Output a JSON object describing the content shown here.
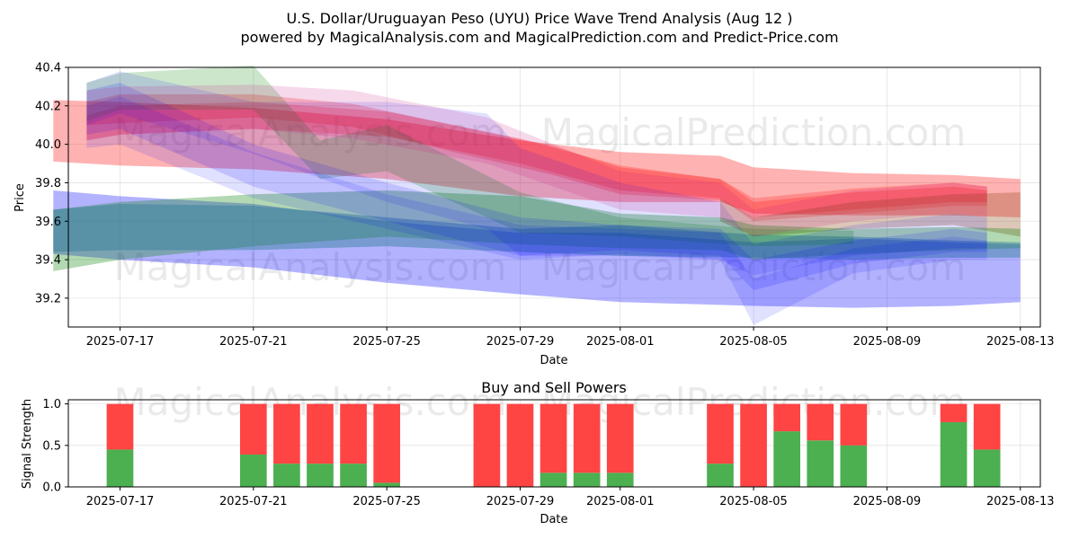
{
  "title_line1": "U.S. Dollar/Uruguayan Peso (UYU) Price Wave Trend Analysis (Aug 12 )",
  "title_line2": "powered by MagicalAnalysis.com and MagicalPrediction.com and Predict-Price.com",
  "watermarks": [
    "MagicalAnalysis.com",
    "MagicalPrediction.com"
  ],
  "chart_data": [
    {
      "type": "area",
      "title": "",
      "xlabel": "Date",
      "ylabel": "Price",
      "ylim": [
        39.05,
        40.4
      ],
      "yticks": [
        39.2,
        39.4,
        39.6,
        39.8,
        40.0,
        40.2,
        40.4
      ],
      "xdomain": [
        "2025-07-15",
        "2025-08-13"
      ],
      "xticks": [
        "2025-07-17",
        "2025-07-21",
        "2025-07-25",
        "2025-07-29",
        "2025-08-01",
        "2025-08-05",
        "2025-08-09",
        "2025-08-13"
      ],
      "grid": true,
      "series": [
        {
          "name": "red band 1",
          "color": "#ff0000",
          "opacity": 0.3,
          "x": [
            "2025-07-15",
            "2025-07-17",
            "2025-07-21",
            "2025-07-25",
            "2025-07-29",
            "2025-08-01",
            "2025-08-04",
            "2025-08-05",
            "2025-08-08",
            "2025-08-11",
            "2025-08-13"
          ],
          "upper": [
            40.23,
            40.22,
            40.19,
            40.13,
            40.02,
            39.96,
            39.94,
            39.88,
            39.85,
            39.84,
            39.82
          ],
          "lower": [
            39.91,
            39.89,
            39.87,
            39.82,
            39.73,
            39.7,
            39.7,
            39.64,
            39.63,
            39.63,
            39.62
          ]
        },
        {
          "name": "red band 2",
          "color": "#ff0000",
          "opacity": 0.22,
          "x": [
            "2025-07-16",
            "2025-07-17",
            "2025-07-21",
            "2025-07-24",
            "2025-07-27",
            "2025-07-30",
            "2025-08-01",
            "2025-08-04",
            "2025-08-05",
            "2025-08-08",
            "2025-08-11",
            "2025-08-12"
          ],
          "upper": [
            40.22,
            40.26,
            40.26,
            40.21,
            40.1,
            39.99,
            39.88,
            39.82,
            39.72,
            39.77,
            39.8,
            39.78
          ],
          "lower": [
            40.1,
            40.11,
            40.14,
            40.09,
            39.96,
            39.84,
            39.74,
            39.71,
            39.62,
            39.66,
            39.7,
            39.7
          ]
        },
        {
          "name": "red band 3",
          "color": "#ff0000",
          "opacity": 0.22,
          "x": [
            "2025-07-16",
            "2025-07-17",
            "2025-07-21",
            "2025-07-25",
            "2025-07-29",
            "2025-08-01",
            "2025-08-04",
            "2025-08-05",
            "2025-08-08",
            "2025-08-11",
            "2025-08-12"
          ],
          "upper": [
            40.15,
            40.2,
            40.22,
            40.17,
            40.03,
            39.89,
            39.82,
            39.7,
            39.75,
            39.78,
            39.76
          ],
          "lower": [
            40.02,
            40.05,
            40.08,
            40.04,
            39.9,
            39.76,
            39.72,
            39.6,
            39.64,
            39.68,
            39.68
          ]
        },
        {
          "name": "brown band",
          "color": "#8b4513",
          "opacity": 0.3,
          "x": [
            "2025-08-04",
            "2025-08-05",
            "2025-08-08",
            "2025-08-11",
            "2025-08-13"
          ],
          "upper": [
            39.72,
            39.62,
            39.7,
            39.74,
            39.75
          ],
          "lower": [
            39.6,
            39.52,
            39.56,
            39.58,
            39.52
          ]
        },
        {
          "name": "blue band wide",
          "color": "#0000ff",
          "opacity": 0.3,
          "x": [
            "2025-07-15",
            "2025-07-17",
            "2025-07-21",
            "2025-07-25",
            "2025-07-29",
            "2025-08-01",
            "2025-08-05",
            "2025-08-08",
            "2025-08-11",
            "2025-08-13"
          ],
          "upper": [
            39.76,
            39.73,
            39.69,
            39.6,
            39.54,
            39.54,
            39.49,
            39.51,
            39.49,
            39.48
          ],
          "lower": [
            39.43,
            39.4,
            39.36,
            39.28,
            39.22,
            39.18,
            39.16,
            39.15,
            39.16,
            39.18
          ]
        },
        {
          "name": "green band wide",
          "color": "#008000",
          "opacity": 0.3,
          "x": [
            "2025-07-15",
            "2025-07-17",
            "2025-07-21",
            "2025-07-25",
            "2025-07-29",
            "2025-08-01",
            "2025-08-04",
            "2025-08-05",
            "2025-08-08",
            "2025-08-11",
            "2025-08-13"
          ],
          "upper": [
            39.66,
            39.7,
            39.74,
            39.76,
            39.73,
            39.64,
            39.62,
            39.58,
            39.56,
            39.57,
            39.56
          ],
          "lower": [
            39.34,
            39.4,
            39.47,
            39.52,
            39.48,
            39.46,
            39.45,
            39.4,
            39.43,
            39.45,
            39.46
          ]
        },
        {
          "name": "steel band",
          "color": "#2e7d99",
          "opacity": 0.45,
          "x": [
            "2025-07-15",
            "2025-07-17",
            "2025-07-21",
            "2025-07-25",
            "2025-07-29",
            "2025-08-01",
            "2025-08-05",
            "2025-08-08",
            "2025-08-11",
            "2025-08-13"
          ],
          "upper": [
            39.66,
            39.69,
            39.68,
            39.62,
            39.56,
            39.58,
            39.53,
            39.52,
            39.5,
            39.49
          ],
          "lower": [
            39.44,
            39.45,
            39.45,
            39.47,
            39.44,
            39.42,
            39.41,
            39.4,
            39.41,
            39.41
          ]
        },
        {
          "name": "green band upper",
          "color": "#008000",
          "opacity": 0.2,
          "x": [
            "2025-07-16",
            "2025-07-17",
            "2025-07-21",
            "2025-07-23",
            "2025-07-25",
            "2025-07-29",
            "2025-08-01",
            "2025-08-05",
            "2025-08-08"
          ],
          "upper": [
            40.32,
            40.37,
            40.41,
            40.02,
            40.1,
            39.75,
            39.62,
            39.56,
            39.55
          ],
          "lower": [
            40.12,
            40.18,
            40.18,
            39.82,
            39.86,
            39.54,
            39.52,
            39.47,
            39.48
          ]
        },
        {
          "name": "blue band falling 1",
          "color": "#0000ff",
          "opacity": 0.12,
          "x": [
            "2025-07-16",
            "2025-07-17",
            "2025-07-21",
            "2025-07-25",
            "2025-07-28",
            "2025-07-29",
            "2025-08-01",
            "2025-08-04",
            "2025-08-05",
            "2025-08-08",
            "2025-08-11",
            "2025-08-12"
          ],
          "upper": [
            40.32,
            40.38,
            40.22,
            40.22,
            40.16,
            39.98,
            39.8,
            39.7,
            39.48,
            39.58,
            39.64,
            39.62
          ],
          "lower": [
            40.1,
            40.16,
            39.95,
            39.7,
            39.56,
            39.42,
            39.42,
            39.4,
            39.32,
            39.42,
            39.46,
            39.46
          ]
        },
        {
          "name": "blue band falling 2",
          "color": "#0000ff",
          "opacity": 0.14,
          "x": [
            "2025-07-16",
            "2025-07-17",
            "2025-07-21",
            "2025-07-25",
            "2025-07-29",
            "2025-08-01",
            "2025-08-04",
            "2025-08-05",
            "2025-08-08",
            "2025-08-11",
            "2025-08-12"
          ],
          "upper": [
            40.28,
            40.32,
            40.0,
            39.8,
            39.62,
            39.58,
            39.56,
            39.4,
            39.5,
            39.56,
            39.54
          ],
          "lower": [
            40.05,
            40.08,
            39.78,
            39.6,
            39.42,
            39.45,
            39.42,
            39.24,
            39.38,
            39.44,
            39.44
          ]
        },
        {
          "name": "blue band falling 3",
          "color": "#0000ff",
          "opacity": 0.12,
          "x": [
            "2025-07-16",
            "2025-07-17",
            "2025-07-21",
            "2025-07-25",
            "2025-07-29",
            "2025-08-01",
            "2025-08-04",
            "2025-08-05",
            "2025-08-08",
            "2025-08-11",
            "2025-08-12"
          ],
          "upper": [
            40.2,
            40.25,
            39.96,
            39.74,
            39.58,
            39.56,
            39.54,
            39.3,
            39.46,
            39.52,
            39.5
          ],
          "lower": [
            39.98,
            40.0,
            39.72,
            39.56,
            39.4,
            39.43,
            39.4,
            39.06,
            39.33,
            39.4,
            39.4
          ]
        },
        {
          "name": "purple band",
          "color": "#c71585",
          "opacity": 0.16,
          "x": [
            "2025-07-16",
            "2025-07-17",
            "2025-07-21",
            "2025-07-24",
            "2025-07-28",
            "2025-08-01",
            "2025-08-04",
            "2025-08-05",
            "2025-08-08",
            "2025-08-11",
            "2025-08-12"
          ],
          "upper": [
            40.28,
            40.3,
            40.31,
            40.28,
            40.14,
            39.86,
            39.8,
            39.66,
            39.76,
            39.8,
            39.78
          ],
          "lower": [
            40.02,
            40.05,
            40.08,
            40.03,
            39.9,
            39.66,
            39.62,
            39.52,
            39.6,
            39.64,
            39.62
          ]
        }
      ]
    },
    {
      "type": "bar",
      "title": "Buy and Sell Powers",
      "xlabel": "Date",
      "ylabel": "Signal Strength",
      "ylim": [
        0,
        1.05
      ],
      "yticks": [
        0.0,
        0.5,
        1.0
      ],
      "xdomain": [
        "2025-07-15",
        "2025-08-13"
      ],
      "xticks": [
        "2025-07-17",
        "2025-07-21",
        "2025-07-25",
        "2025-07-29",
        "2025-08-01",
        "2025-08-05",
        "2025-08-09",
        "2025-08-13"
      ],
      "grid": true,
      "colors": {
        "buy": "#4caf50",
        "sell": "#ff4444"
      },
      "dates": [
        "2025-07-17",
        "2025-07-21",
        "2025-07-22",
        "2025-07-23",
        "2025-07-24",
        "2025-07-25",
        "2025-07-28",
        "2025-07-29",
        "2025-07-30",
        "2025-07-31",
        "2025-08-01",
        "2025-08-04",
        "2025-08-05",
        "2025-08-06",
        "2025-08-07",
        "2025-08-08",
        "2025-08-11",
        "2025-08-12"
      ],
      "buy": [
        0.45,
        0.39,
        0.28,
        0.28,
        0.28,
        0.05,
        0.0,
        0.0,
        0.17,
        0.17,
        0.17,
        0.28,
        0.0,
        0.67,
        0.56,
        0.5,
        0.78,
        0.45
      ],
      "sell": [
        0.55,
        0.61,
        0.72,
        0.72,
        0.72,
        0.95,
        1.0,
        1.0,
        0.83,
        0.83,
        0.83,
        0.72,
        1.0,
        0.33,
        0.44,
        0.5,
        0.22,
        0.55
      ]
    }
  ]
}
